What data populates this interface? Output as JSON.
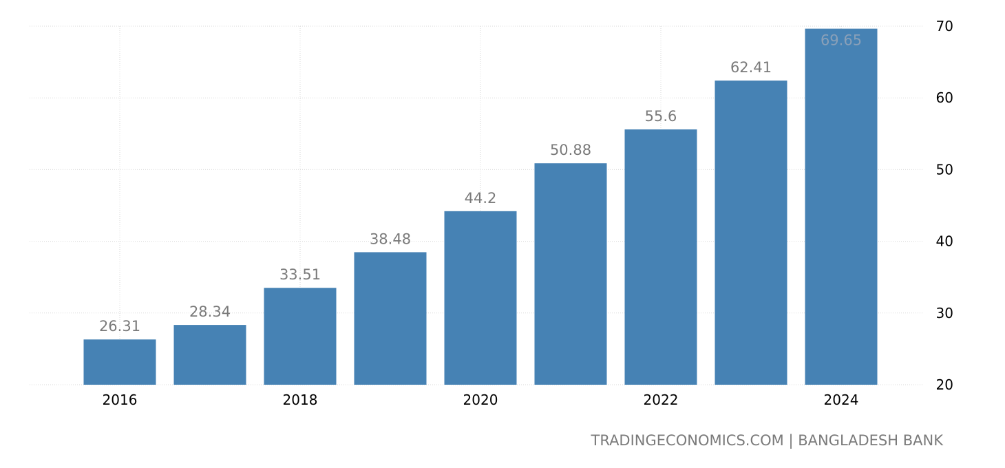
{
  "chart_data": {
    "type": "bar",
    "categories": [
      "2016",
      "2017",
      "2018",
      "2019",
      "2020",
      "2021",
      "2022",
      "2023",
      "2024"
    ],
    "values": [
      26.31,
      28.34,
      33.51,
      38.48,
      44.2,
      50.88,
      55.6,
      62.41,
      69.65
    ],
    "data_labels": [
      "26.31",
      "28.34",
      "33.51",
      "38.48",
      "44.2",
      "50.88",
      "55.6",
      "62.41",
      "69.65"
    ],
    "x_tick_labels": [
      "2016",
      "2018",
      "2020",
      "2022",
      "2024"
    ],
    "y_ticks": [
      20,
      30,
      40,
      50,
      60,
      70
    ],
    "ylim": [
      20,
      70
    ],
    "y_axis_side": "right",
    "grid": true,
    "bar_color": "#4682b4",
    "title": "",
    "xlabel": "",
    "ylabel": ""
  },
  "source_text": "TRADINGECONOMICS.COM | BANGLADESH BANK"
}
